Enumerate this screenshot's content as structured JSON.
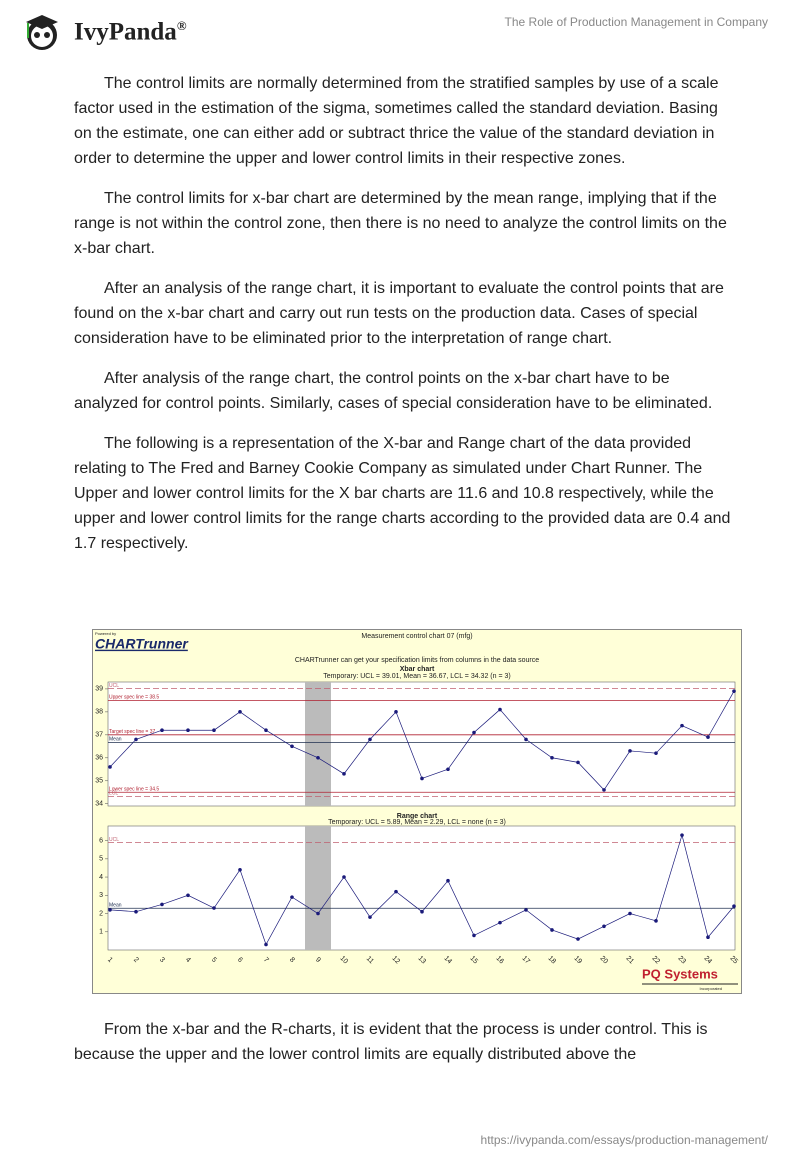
{
  "header": {
    "logo": "IvyPanda",
    "reg": "®",
    "title": "The Role of Production Management in Company"
  },
  "paragraphs": [
    "The control limits are normally determined from the stratified samples by use of a scale factor used in the estimation of the sigma, sometimes called the standard deviation. Basing on the estimate, one can either add or subtract thrice the value of the standard deviation in order to determine the upper and lower control limits in their respective zones.",
    "The control limits for x-bar chart are determined by the mean range, implying that if the range is not within the control zone, then there is no need to analyze the control limits on the x-bar chart.",
    "After an analysis of the range chart, it is important to evaluate the control points that are found on the x-bar chart and carry out run tests on the production data. Cases of special consideration have to be eliminated prior to the interpretation of range chart.",
    "After analysis of the range chart, the control points on the x-bar chart have to be analyzed for control points. Similarly, cases of special consideration have to be eliminated.",
    "The following is a representation of the X-bar and Range chart of the data provided relating to The Fred and Barney Cookie Company as simulated under Chart Runner. The Upper and lower control limits for the X bar charts are 11.6 and 10.8 respectively, while the upper and lower control limits for the range charts according to the provided data are 0.4 and 1.7 respectively."
  ],
  "closing": "From the x-bar and the R-charts, it is evident that the process is under control. This is because the upper and the lower control limits are equally distributed above the",
  "chart_data": {
    "type": "line",
    "powered": "Powered by",
    "brand": "CHARTrunner",
    "title": "Measurement control chart 07 (mfg)",
    "subtitle": "CHARTrunner can get your specification limits from columns in the data source",
    "categories": [
      "1",
      "2",
      "3",
      "4",
      "5",
      "6",
      "7",
      "8",
      "9",
      "10",
      "11",
      "12",
      "13",
      "14",
      "15",
      "16",
      "17",
      "18",
      "19",
      "20",
      "21",
      "22",
      "23",
      "24",
      "25"
    ],
    "highlight_index": 8,
    "vendor": "PQ Systems",
    "vendor_sub": "Incorporated",
    "charts": [
      {
        "title": "Xbar chart",
        "subtitle": "Temporary: UCL = 39.01, Mean = 36.67, LCL = 34.32 (n = 3)",
        "ylim": [
          33.9,
          39.3
        ],
        "yticks": [
          34,
          35,
          36,
          37,
          38,
          39
        ],
        "color": "#1a1a7a",
        "values": [
          35.6,
          36.8,
          37.2,
          37.2,
          37.2,
          38.0,
          37.2,
          36.5,
          36.0,
          35.3,
          36.8,
          38.0,
          35.1,
          35.5,
          37.1,
          38.1,
          36.8,
          36.0,
          35.8,
          34.6,
          36.3,
          36.2,
          37.4,
          36.9,
          38.9
        ],
        "lines": [
          {
            "label": "UCL",
            "value": 39.01,
            "color": "#c06070",
            "dashed": true
          },
          {
            "label": "Upper spec line = 38.5",
            "value": 38.5,
            "color": "#b02030",
            "dashed": false
          },
          {
            "label": "Target spec line = 37",
            "value": 37,
            "color": "#b02030",
            "dashed": false
          },
          {
            "label": "Mean",
            "value": 36.67,
            "color": "#203050",
            "dashed": false
          },
          {
            "label": "Lower spec line = 34.5",
            "value": 34.5,
            "color": "#b02030",
            "dashed": false
          },
          {
            "label": "LCL",
            "value": 34.32,
            "color": "#c06070",
            "dashed": true
          }
        ]
      },
      {
        "title": "Range chart",
        "subtitle": "Temporary: UCL = 5.89, Mean = 2.29, LCL = none (n = 3)",
        "ylim": [
          0,
          6.8
        ],
        "yticks": [
          1,
          2,
          3,
          4,
          5,
          6
        ],
        "color": "#1a1a7a",
        "values": [
          2.2,
          2.1,
          2.5,
          3.0,
          2.3,
          4.4,
          0.3,
          2.9,
          2.0,
          4.0,
          1.8,
          3.2,
          2.1,
          3.8,
          0.8,
          1.5,
          2.2,
          1.1,
          0.6,
          1.3,
          2.0,
          1.6,
          6.3,
          0.7,
          2.4
        ],
        "lines": [
          {
            "label": "UCL",
            "value": 5.89,
            "color": "#c06070",
            "dashed": true
          },
          {
            "label": "Mean",
            "value": 2.29,
            "color": "#203050",
            "dashed": false
          }
        ]
      }
    ]
  },
  "footer": {
    "url": "https://ivypanda.com/essays/production-management/"
  }
}
